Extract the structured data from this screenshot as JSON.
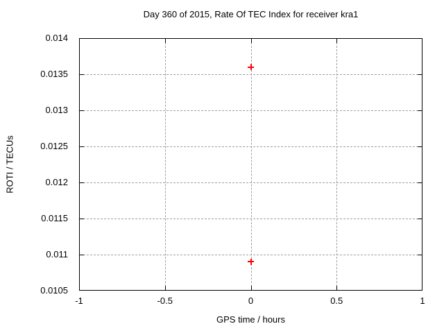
{
  "chart_data": {
    "type": "scatter",
    "title": "Day 360 of 2015, Rate Of TEC Index for receiver kra1",
    "xlabel": "GPS time / hours",
    "ylabel": "ROTI / TECUs",
    "xlim": [
      -1,
      1
    ],
    "ylim": [
      0.0105,
      0.014
    ],
    "xticks": [
      -1,
      -0.5,
      0,
      0.5,
      1
    ],
    "xtick_labels": [
      "-1",
      "-0.5",
      "0",
      "0.5",
      "1"
    ],
    "yticks": [
      0.0105,
      0.011,
      0.0115,
      0.012,
      0.0125,
      0.013,
      0.0135,
      0.014
    ],
    "ytick_labels": [
      "0.0105",
      "0.011",
      "0.0115",
      "0.012",
      "0.0125",
      "0.013",
      "0.0135",
      "0.014"
    ],
    "grid": true,
    "legend": "none",
    "series": [
      {
        "name": "ROTI",
        "marker": "plus",
        "color": "#ff0000",
        "points": [
          {
            "x": 0,
            "y": 0.0136
          },
          {
            "x": 0,
            "y": 0.0109
          }
        ]
      }
    ],
    "colors": {
      "marker": "#ff0000",
      "grid": "#9e9e9e",
      "border": "#000000",
      "background": "#ffffff",
      "text": "#000000"
    }
  }
}
